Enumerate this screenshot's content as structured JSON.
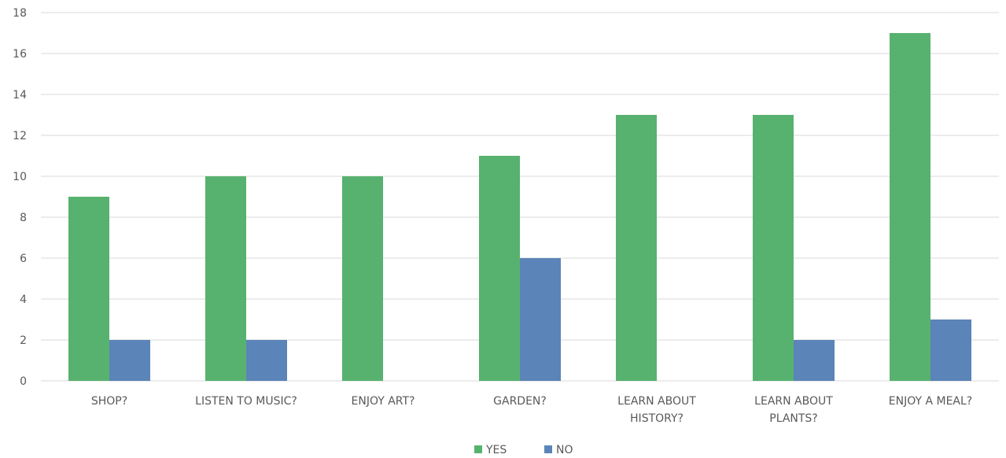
{
  "chart_data": {
    "type": "bar",
    "categories": [
      [
        "SHOP?"
      ],
      [
        "LISTEN TO MUSIC?"
      ],
      [
        "ENJOY ART?"
      ],
      [
        "GARDEN?"
      ],
      [
        "LEARN ABOUT",
        "HISTORY?"
      ],
      [
        "LEARN ABOUT",
        "PLANTS?"
      ],
      [
        "ENJOY A MEAL?"
      ]
    ],
    "series": [
      {
        "name": "YES",
        "color": "#57b26f",
        "values": [
          9,
          10,
          10,
          11,
          13,
          13,
          17
        ]
      },
      {
        "name": "NO",
        "color": "#5b84b8",
        "values": [
          2,
          2,
          0,
          6,
          0,
          2,
          3
        ]
      }
    ],
    "ylim": [
      0,
      18
    ],
    "yticks": [
      0,
      2,
      4,
      6,
      8,
      10,
      12,
      14,
      16,
      18
    ],
    "grid": true,
    "legend": "bottom"
  }
}
